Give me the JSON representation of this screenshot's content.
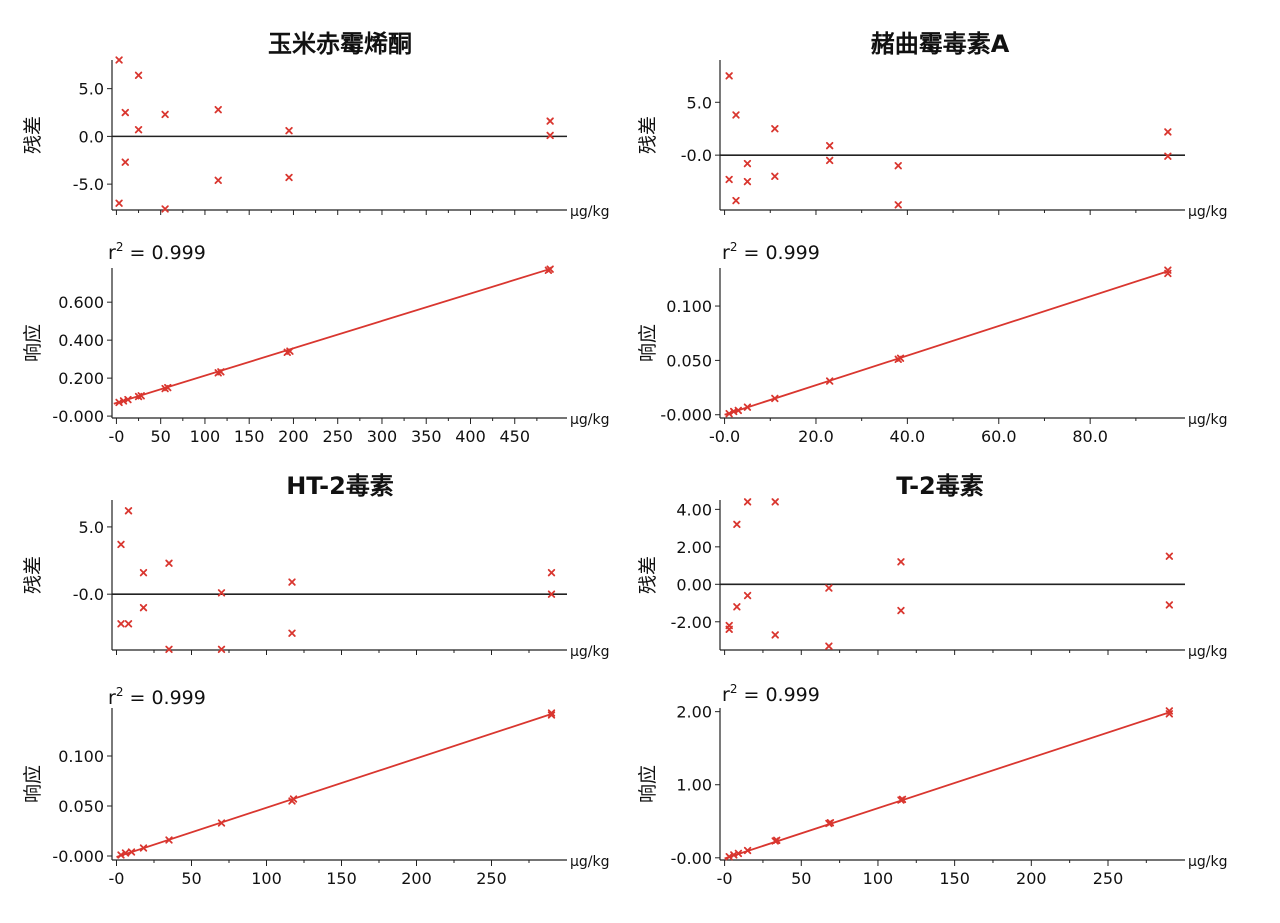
{
  "chart_data": [
    {
      "type": "scatter",
      "title": "玉米赤霉烯酮",
      "x_unit": "μg/kg",
      "residual": {
        "ylabel": "残差",
        "ylim": [
          -7.5,
          8
        ],
        "yticks": [
          5.0,
          0.0,
          -5.0
        ],
        "ytick_labels": [
          "5.0",
          "0.0",
          "-5.0"
        ],
        "points": [
          [
            3,
            8.0
          ],
          [
            3,
            -7.0
          ],
          [
            10,
            2.5
          ],
          [
            10,
            -2.7
          ],
          [
            25,
            6.4
          ],
          [
            25,
            0.7
          ],
          [
            55,
            2.3
          ],
          [
            55,
            -7.6
          ],
          [
            115,
            2.8
          ],
          [
            115,
            -4.6
          ],
          [
            195,
            0.6
          ],
          [
            195,
            -4.3
          ],
          [
            490,
            1.6
          ],
          [
            490,
            0.1
          ]
        ]
      },
      "calibration": {
        "ylabel": "响应",
        "r2_label": "r",
        "r2_sup": "2",
        "r2_value": " = 0.999",
        "ylim": [
          -0.01,
          0.78
        ],
        "xlim": [
          -5,
          500
        ],
        "yticks": [
          0.6,
          0.4,
          0.2,
          0.0
        ],
        "ytick_labels": [
          "0.600",
          "0.400",
          "0.200",
          "-0.000"
        ],
        "xticks": [
          0,
          50,
          100,
          150,
          200,
          250,
          300,
          350,
          400,
          450
        ],
        "xtick_labels": [
          "-0",
          "50",
          "100",
          "150",
          "200",
          "250",
          "300",
          "350",
          "400",
          "450"
        ],
        "fit": [
          [
            -3,
            0.065
          ],
          [
            490,
            0.775
          ]
        ],
        "points": [
          [
            3,
            0.072
          ],
          [
            8,
            0.08
          ],
          [
            13,
            0.087
          ],
          [
            25,
            0.103
          ],
          [
            28,
            0.107
          ],
          [
            55,
            0.145
          ],
          [
            58,
            0.15
          ],
          [
            115,
            0.228
          ],
          [
            118,
            0.233
          ],
          [
            193,
            0.336
          ],
          [
            196,
            0.342
          ],
          [
            488,
            0.768
          ],
          [
            490,
            0.774
          ]
        ]
      }
    },
    {
      "type": "scatter",
      "title": "赭曲霉毒素A",
      "x_unit": "μg/kg",
      "residual": {
        "ylabel": "残差",
        "ylim": [
          -5,
          9
        ],
        "yticks": [
          5.0,
          0.0
        ],
        "ytick_labels": [
          "5.0",
          "-0.0"
        ],
        "points": [
          [
            1,
            7.5
          ],
          [
            1,
            -2.3
          ],
          [
            2.5,
            3.8
          ],
          [
            2.5,
            -4.3
          ],
          [
            5,
            -0.8
          ],
          [
            5,
            -2.5
          ],
          [
            11,
            2.5
          ],
          [
            11,
            -2.0
          ],
          [
            23,
            0.9
          ],
          [
            23,
            -0.5
          ],
          [
            38,
            -1.0
          ],
          [
            38,
            -4.7
          ],
          [
            97,
            2.2
          ],
          [
            97,
            -0.1
          ]
        ]
      },
      "calibration": {
        "ylabel": "响应",
        "r2_label": "r",
        "r2_sup": "2",
        "r2_value": " = 0.999",
        "ylim": [
          -0.003,
          0.135
        ],
        "xlim": [
          -1,
          99
        ],
        "yticks": [
          0.1,
          0.05,
          0.0
        ],
        "ytick_labels": [
          "0.100",
          "0.050",
          "-0.000"
        ],
        "xticks": [
          0,
          20,
          40,
          60,
          80
        ],
        "xtick_labels": [
          "-0.0",
          "20.0",
          "40.0",
          "60.0",
          "80.0"
        ],
        "fit": [
          [
            0,
            0.0
          ],
          [
            97,
            0.132
          ]
        ],
        "points": [
          [
            1,
            0.001
          ],
          [
            2,
            0.003
          ],
          [
            3,
            0.004
          ],
          [
            5,
            0.007
          ],
          [
            11,
            0.015
          ],
          [
            23,
            0.031
          ],
          [
            38,
            0.051
          ],
          [
            38.5,
            0.052
          ],
          [
            97,
            0.13
          ],
          [
            97,
            0.133
          ]
        ]
      }
    },
    {
      "type": "scatter",
      "title": "HT-2毒素",
      "x_unit": "μg/kg",
      "residual": {
        "ylabel": "残差",
        "ylim": [
          -4,
          7
        ],
        "yticks": [
          5.0,
          0.0
        ],
        "ytick_labels": [
          "5.0",
          "-0.0"
        ],
        "points": [
          [
            3,
            3.7
          ],
          [
            3,
            -2.2
          ],
          [
            8,
            6.2
          ],
          [
            8,
            -2.2
          ],
          [
            18,
            1.6
          ],
          [
            18,
            -1.0
          ],
          [
            35,
            2.3
          ],
          [
            35,
            -4.1
          ],
          [
            70,
            0.1
          ],
          [
            70,
            -4.1
          ],
          [
            117,
            0.9
          ],
          [
            117,
            -2.9
          ],
          [
            290,
            1.6
          ],
          [
            290,
            0.0
          ]
        ]
      },
      "calibration": {
        "ylabel": "响应",
        "r2_label": "r",
        "r2_sup": "2",
        "r2_value": " = 0.999",
        "ylim": [
          -0.004,
          0.148
        ],
        "xlim": [
          -3,
          295
        ],
        "yticks": [
          0.1,
          0.05,
          0.0
        ],
        "ytick_labels": [
          "0.100",
          "0.050",
          "-0.000"
        ],
        "xticks": [
          0,
          50,
          100,
          150,
          200,
          250
        ],
        "xtick_labels": [
          "-0",
          "50",
          "100",
          "150",
          "200",
          "250"
        ],
        "fit": [
          [
            0,
            -0.001
          ],
          [
            290,
            0.142
          ]
        ],
        "points": [
          [
            3,
            0.001
          ],
          [
            6,
            0.003
          ],
          [
            10,
            0.004
          ],
          [
            18,
            0.008
          ],
          [
            35,
            0.016
          ],
          [
            70,
            0.033
          ],
          [
            117,
            0.055
          ],
          [
            118,
            0.057
          ],
          [
            290,
            0.141
          ],
          [
            290,
            0.143
          ]
        ]
      }
    },
    {
      "type": "scatter",
      "title": "T-2毒素",
      "x_unit": "μg/kg",
      "residual": {
        "ylabel": "残差",
        "ylim": [
          -3.4,
          4.5
        ],
        "yticks": [
          4.0,
          2.0,
          0.0,
          -2.0
        ],
        "ytick_labels": [
          "4.00",
          "2.00",
          "0.00",
          "-2.00"
        ],
        "points": [
          [
            3,
            -2.2
          ],
          [
            3,
            -2.4
          ],
          [
            8,
            3.2
          ],
          [
            8,
            -1.2
          ],
          [
            15,
            4.4
          ],
          [
            15,
            -0.6
          ],
          [
            33,
            4.4
          ],
          [
            33,
            -2.7
          ],
          [
            68,
            -0.2
          ],
          [
            68,
            -3.3
          ],
          [
            115,
            1.2
          ],
          [
            115,
            -1.4
          ],
          [
            290,
            1.5
          ],
          [
            290,
            -1.1
          ]
        ]
      },
      "calibration": {
        "ylabel": "响应",
        "r2_label": "r",
        "r2_sup": "2",
        "r2_value": " = 0.999",
        "ylim": [
          -0.03,
          2.05
        ],
        "xlim": [
          -3,
          295
        ],
        "yticks": [
          2.0,
          1.0,
          0.0
        ],
        "ytick_labels": [
          "2.00",
          "1.00",
          "-0.00"
        ],
        "xticks": [
          0,
          50,
          100,
          150,
          200,
          250
        ],
        "xtick_labels": [
          "-0",
          "50",
          "100",
          "150",
          "200",
          "250"
        ],
        "fit": [
          [
            0,
            -0.01
          ],
          [
            290,
            1.99
          ]
        ],
        "points": [
          [
            3,
            0.015
          ],
          [
            6,
            0.04
          ],
          [
            9,
            0.06
          ],
          [
            15,
            0.1
          ],
          [
            33,
            0.23
          ],
          [
            34,
            0.24
          ],
          [
            68,
            0.47
          ],
          [
            69,
            0.48
          ],
          [
            115,
            0.79
          ],
          [
            116,
            0.8
          ],
          [
            290,
            1.97
          ],
          [
            290,
            2.01
          ]
        ]
      }
    }
  ]
}
